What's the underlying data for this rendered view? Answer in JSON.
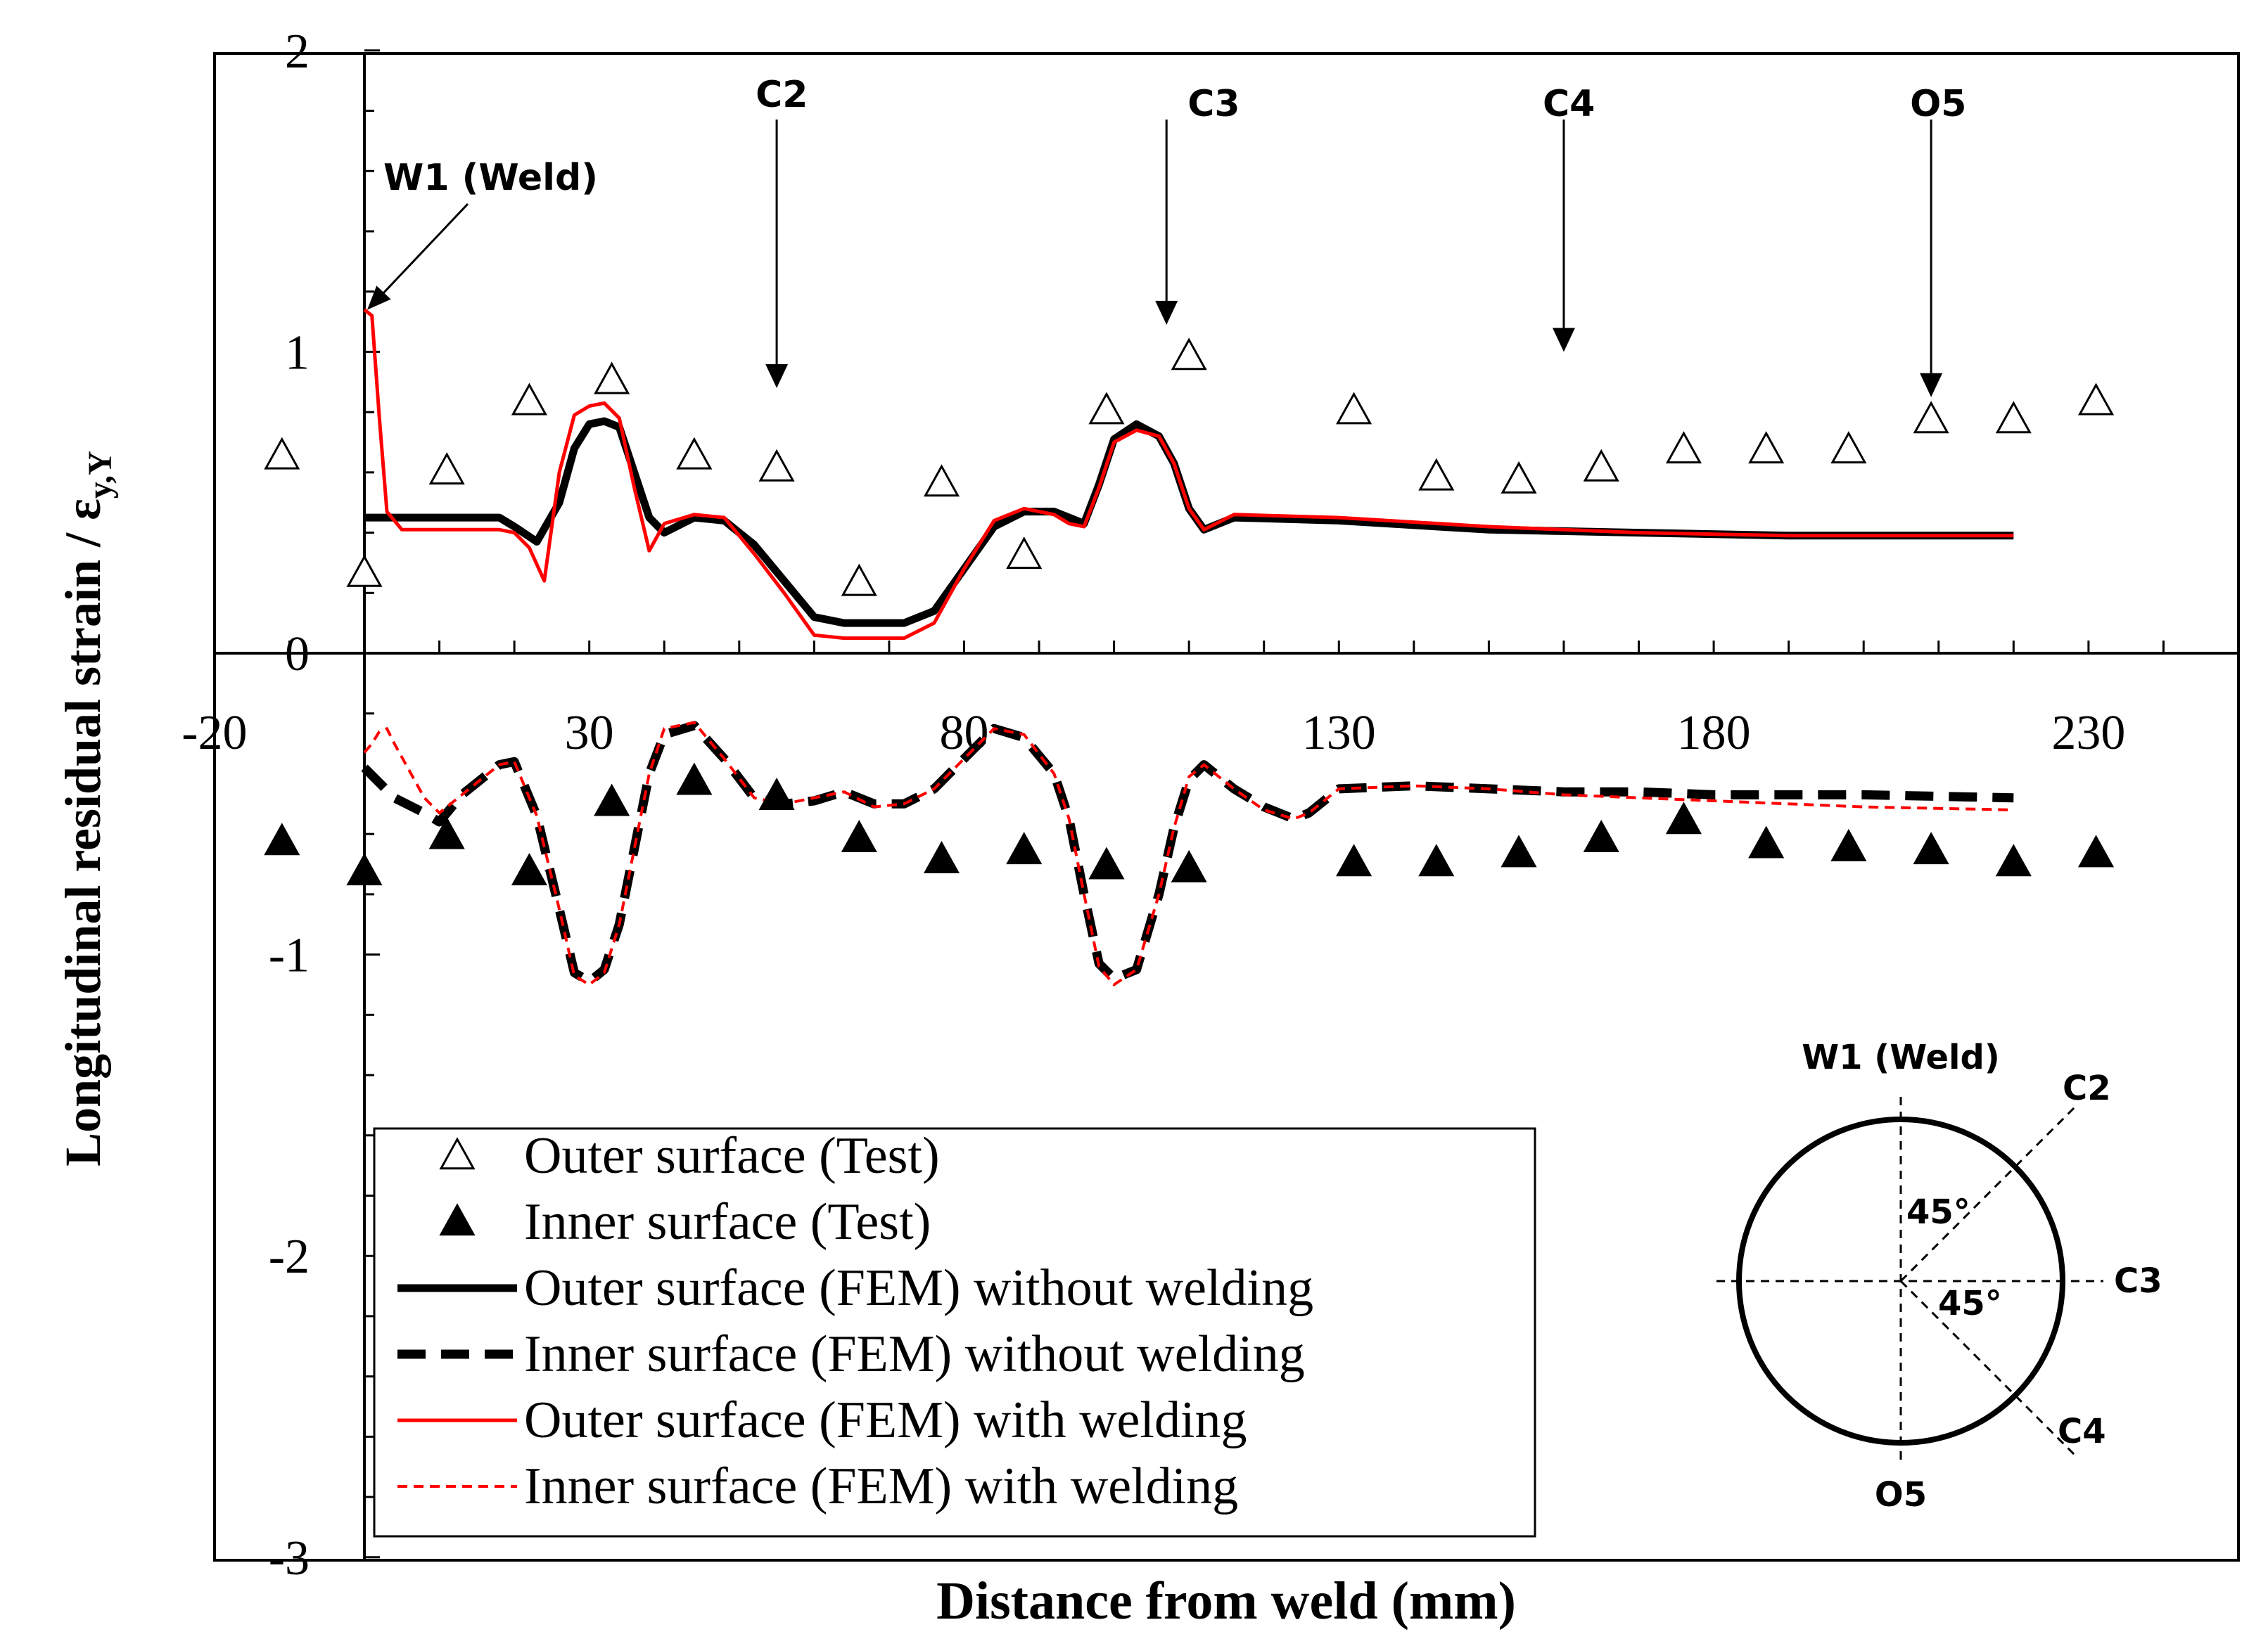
{
  "chart_data": {
    "type": "scatter",
    "title": "",
    "xlabel": "Distance from weld (mm)",
    "ylabel_main": "Longitudinal residual strain / ε",
    "ylabel_sub": "y,Y",
    "xlim": [
      -20,
      250
    ],
    "ylim": [
      -3,
      2
    ],
    "x_ticks": [
      -20,
      30,
      80,
      130,
      180,
      230
    ],
    "x_tick_labels": [
      "-20",
      "30",
      "80",
      "130",
      "180",
      "230"
    ],
    "y_ticks": [
      -3,
      -2,
      -1,
      0,
      1,
      2
    ],
    "y_tick_labels": [
      "-3",
      "-2",
      "-1",
      "0",
      "1",
      "2"
    ],
    "legend_position": "bottom-left",
    "series": [
      {
        "name": "Outer surface (Test)",
        "style": "open-triangle",
        "color": "#000000",
        "x": [
          -11,
          0,
          11,
          22,
          33,
          44,
          55,
          66,
          77,
          88,
          99,
          110,
          132,
          143,
          154,
          165,
          176,
          187,
          198,
          209,
          220,
          231
        ],
        "y": [
          0.65,
          0.26,
          0.6,
          0.83,
          0.9,
          0.65,
          0.61,
          0.23,
          0.56,
          0.32,
          0.8,
          0.98,
          0.8,
          0.58,
          0.57,
          0.61,
          0.67,
          0.67,
          0.67,
          0.77,
          0.77,
          0.83
        ]
      },
      {
        "name": "Inner surface (Test)",
        "style": "filled-triangle",
        "color": "#000000",
        "x": [
          -11,
          0,
          11,
          22,
          33,
          44,
          55,
          66,
          77,
          88,
          99,
          110,
          132,
          143,
          154,
          165,
          176,
          187,
          198,
          209,
          220,
          231
        ],
        "y": [
          -0.63,
          -0.73,
          -0.61,
          -0.73,
          -0.5,
          -0.43,
          -0.48,
          -0.62,
          -0.69,
          -0.66,
          -0.71,
          -0.72,
          -0.7,
          -0.7,
          -0.67,
          -0.62,
          -0.56,
          -0.64,
          -0.65,
          -0.66,
          -0.7,
          -0.67
        ]
      },
      {
        "name": "Outer surface (FEM) without welding",
        "style": "solid-thick",
        "color": "#000000",
        "x": [
          0,
          5,
          10,
          15,
          18,
          20,
          23,
          26,
          28,
          30,
          32,
          34,
          36,
          38,
          40,
          44,
          48,
          52,
          56,
          60,
          64,
          68,
          72,
          76,
          80,
          84,
          88,
          92,
          94,
          96,
          98,
          100,
          103,
          106,
          108,
          110,
          112,
          116,
          130,
          150,
          170,
          190,
          210,
          220
        ],
        "y": [
          0.45,
          0.45,
          0.45,
          0.45,
          0.45,
          0.42,
          0.37,
          0.5,
          0.68,
          0.76,
          0.77,
          0.75,
          0.6,
          0.45,
          0.4,
          0.45,
          0.44,
          0.36,
          0.24,
          0.12,
          0.1,
          0.1,
          0.1,
          0.14,
          0.28,
          0.42,
          0.47,
          0.47,
          0.45,
          0.43,
          0.56,
          0.71,
          0.76,
          0.72,
          0.63,
          0.48,
          0.41,
          0.45,
          0.44,
          0.41,
          0.4,
          0.39,
          0.39,
          0.39
        ]
      },
      {
        "name": "Inner surface (FEM) without welding",
        "style": "dashed-thick",
        "color": "#000000",
        "x": [
          0,
          4,
          8,
          10,
          13,
          18,
          20,
          23,
          26,
          28,
          30,
          32,
          34,
          36,
          38,
          40,
          44,
          48,
          52,
          56,
          60,
          64,
          68,
          72,
          76,
          80,
          84,
          88,
          92,
          94,
          96,
          98,
          100,
          103,
          106,
          108,
          110,
          112,
          116,
          120,
          124,
          126,
          130,
          140,
          150,
          160,
          170,
          180,
          200,
          220
        ],
        "y": [
          -0.38,
          -0.48,
          -0.53,
          -0.56,
          -0.47,
          -0.37,
          -0.36,
          -0.54,
          -0.85,
          -1.06,
          -1.09,
          -1.05,
          -0.9,
          -0.65,
          -0.4,
          -0.27,
          -0.24,
          -0.35,
          -0.48,
          -0.5,
          -0.49,
          -0.46,
          -0.5,
          -0.5,
          -0.45,
          -0.35,
          -0.25,
          -0.28,
          -0.4,
          -0.55,
          -0.8,
          -1.03,
          -1.08,
          -1.05,
          -0.8,
          -0.58,
          -0.42,
          -0.37,
          -0.45,
          -0.51,
          -0.55,
          -0.53,
          -0.45,
          -0.44,
          -0.45,
          -0.46,
          -0.46,
          -0.47,
          -0.47,
          -0.48
        ]
      },
      {
        "name": "Outer surface (FEM) with welding",
        "style": "solid-thin",
        "color": "#ff0000",
        "x": [
          0,
          1,
          2,
          3,
          5,
          10,
          15,
          18,
          20,
          22,
          24,
          26,
          28,
          30,
          32,
          34,
          36,
          38,
          40,
          44,
          48,
          52,
          56,
          60,
          64,
          68,
          72,
          76,
          80,
          84,
          88,
          92,
          94,
          96,
          98,
          100,
          103,
          106,
          108,
          110,
          112,
          116,
          130,
          150,
          170,
          190,
          210,
          220
        ],
        "y": [
          1.14,
          1.12,
          0.78,
          0.47,
          0.41,
          0.41,
          0.41,
          0.41,
          0.4,
          0.35,
          0.24,
          0.6,
          0.79,
          0.82,
          0.83,
          0.78,
          0.55,
          0.34,
          0.43,
          0.46,
          0.45,
          0.33,
          0.2,
          0.06,
          0.05,
          0.05,
          0.05,
          0.1,
          0.28,
          0.44,
          0.48,
          0.46,
          0.43,
          0.42,
          0.55,
          0.7,
          0.74,
          0.72,
          0.63,
          0.48,
          0.41,
          0.46,
          0.45,
          0.42,
          0.4,
          0.39,
          0.39,
          0.39
        ]
      },
      {
        "name": "Inner surface (FEM) with welding",
        "style": "dashed-thin",
        "color": "#ff0000",
        "x": [
          0,
          1,
          2,
          3,
          4,
          8,
          10,
          13,
          18,
          20,
          23,
          26,
          28,
          30,
          32,
          34,
          36,
          38,
          40,
          44,
          48,
          52,
          56,
          60,
          64,
          68,
          72,
          76,
          80,
          84,
          88,
          92,
          94,
          96,
          98,
          100,
          103,
          106,
          108,
          110,
          112,
          116,
          120,
          124,
          126,
          130,
          140,
          150,
          160,
          170,
          180,
          200,
          220
        ],
        "y": [
          -0.33,
          -0.3,
          -0.26,
          -0.25,
          -0.3,
          -0.48,
          -0.53,
          -0.47,
          -0.37,
          -0.36,
          -0.54,
          -0.85,
          -1.07,
          -1.1,
          -1.06,
          -0.9,
          -0.65,
          -0.4,
          -0.25,
          -0.23,
          -0.35,
          -0.48,
          -0.5,
          -0.48,
          -0.46,
          -0.51,
          -0.5,
          -0.45,
          -0.35,
          -0.25,
          -0.27,
          -0.4,
          -0.55,
          -0.8,
          -1.04,
          -1.1,
          -1.05,
          -0.8,
          -0.58,
          -0.41,
          -0.37,
          -0.45,
          -0.52,
          -0.55,
          -0.53,
          -0.45,
          -0.44,
          -0.45,
          -0.47,
          -0.48,
          -0.49,
          -0.51,
          -0.52
        ]
      }
    ],
    "annotations": [
      {
        "label": "W1 (Weld)",
        "x": 0,
        "y": 1.13,
        "style": "diagonal-arrow"
      },
      {
        "label": "C2",
        "x": 55,
        "y": 0.88,
        "style": "down-arrow"
      },
      {
        "label": "C3",
        "x": 107,
        "y": 1.09,
        "style": "down-arrow"
      },
      {
        "label": "C4",
        "x": 160,
        "y": 1.0,
        "style": "down-arrow"
      },
      {
        "label": "O5",
        "x": 209,
        "y": 0.85,
        "style": "down-arrow"
      }
    ],
    "inset": {
      "description": "pipe cross-section",
      "labels": {
        "top": "W1 (Weld)",
        "upper_right": "C2",
        "right": "C3",
        "lower_right": "C4",
        "bottom": "O5"
      },
      "angle_labels": [
        "45°",
        "45°"
      ]
    }
  }
}
